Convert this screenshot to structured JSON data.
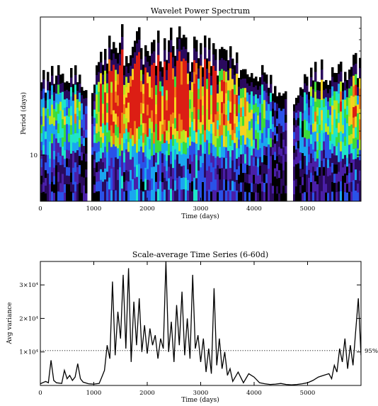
{
  "chart_data": [
    {
      "type": "heatmap",
      "title": "Wavelet Power Spectrum",
      "xlabel": "Time (days)",
      "ylabel": "Period (days)",
      "xlim": [
        0,
        6000
      ],
      "x_ticks": [
        "0",
        "1000",
        "2000",
        "3000",
        "4000",
        "5000"
      ],
      "x_tick_values": [
        0,
        1000,
        2000,
        3000,
        4000,
        5000
      ],
      "y_scale": "log",
      "y_ticks": [
        "10"
      ],
      "y_tick_values": [
        10
      ],
      "colormap": [
        "#000000",
        "#2a0a5e",
        "#4a1fa8",
        "#2a52e8",
        "#1aa6f0",
        "#1ee6c8",
        "#3cdc3c",
        "#b4e61e",
        "#f5d21e",
        "#f07814",
        "#dc1e14"
      ],
      "activity_profile": {
        "t": [
          0,
          150,
          300,
          450,
          600,
          750,
          900,
          1050,
          1200,
          1350,
          1500,
          1650,
          1800,
          1950,
          2100,
          2250,
          2400,
          2550,
          2700,
          2850,
          3000,
          3150,
          3300,
          3450,
          3600,
          3750,
          3900,
          4050,
          4200,
          4350,
          4500,
          4650,
          4800,
          4950,
          5100,
          5250,
          5400,
          5550,
          5700,
          5850,
          6000
        ],
        "level": [
          0.45,
          0.55,
          0.5,
          0.55,
          0.6,
          0.45,
          0.05,
          0.7,
          0.85,
          0.95,
          1.0,
          1.0,
          0.95,
          0.95,
          1.0,
          0.95,
          1.0,
          0.95,
          1.0,
          0.9,
          0.85,
          0.85,
          0.8,
          0.8,
          0.7,
          0.7,
          0.65,
          0.6,
          0.55,
          0.35,
          0.2,
          0.1,
          0.2,
          0.4,
          0.55,
          0.6,
          0.55,
          0.6,
          0.65,
          0.7,
          0.75
        ]
      }
    },
    {
      "type": "line",
      "title": "Scale-average Time Series (6-60d)",
      "xlabel": "Time (days)",
      "ylabel": "Avg variance",
      "xlim": [
        0,
        6000
      ],
      "ylim": [
        0,
        37000
      ],
      "x_ticks": [
        "0",
        "1000",
        "2000",
        "3000",
        "4000",
        "5000"
      ],
      "x_tick_values": [
        0,
        1000,
        2000,
        3000,
        4000,
        5000
      ],
      "y_ticks": [
        "1×10⁴",
        "2×10⁴",
        "3×10⁴"
      ],
      "y_tick_values": [
        10000,
        20000,
        30000
      ],
      "threshold": {
        "value": 10400,
        "label": "95%"
      },
      "series": [
        {
          "x": [
            0,
            100,
            150,
            200,
            250,
            300,
            400,
            450,
            500,
            550,
            600,
            650,
            700,
            750,
            800,
            900,
            1000,
            1100,
            1150,
            1200,
            1250,
            1300,
            1350,
            1400,
            1450,
            1500,
            1550,
            1600,
            1650,
            1700,
            1750,
            1800,
            1850,
            1900,
            1950,
            2000,
            2050,
            2100,
            2150,
            2200,
            2250,
            2300,
            2350,
            2400,
            2450,
            2500,
            2550,
            2600,
            2650,
            2700,
            2750,
            2800,
            2850,
            2900,
            2950,
            3000,
            3050,
            3100,
            3150,
            3200,
            3250,
            3300,
            3350,
            3400,
            3450,
            3500,
            3550,
            3600,
            3700,
            3800,
            3900,
            4000,
            4100,
            4200,
            4300,
            4400,
            4500,
            4600,
            4700,
            4800,
            4900,
            5000,
            5100,
            5200,
            5300,
            5400,
            5450,
            5500,
            5550,
            5600,
            5650,
            5700,
            5750,
            5800,
            5850,
            5900,
            5950,
            6000
          ],
          "y": [
            500,
            1200,
            800,
            7500,
            1500,
            800,
            600,
            4500,
            2000,
            3000,
            1500,
            2500,
            6500,
            2000,
            1000,
            500,
            400,
            600,
            2500,
            4500,
            12000,
            8000,
            31000,
            9000,
            22000,
            14000,
            33000,
            11000,
            35000,
            7000,
            25000,
            12000,
            26000,
            10000,
            18000,
            9500,
            17000,
            12000,
            15000,
            8000,
            14000,
            11000,
            37000,
            10000,
            19000,
            7000,
            24000,
            12000,
            28000,
            9000,
            20000,
            8000,
            33000,
            11000,
            15000,
            7000,
            14000,
            4000,
            11000,
            3500,
            29000,
            6000,
            14000,
            5000,
            10000,
            3000,
            5000,
            1200,
            4000,
            800,
            3500,
            2500,
            800,
            500,
            300,
            400,
            600,
            300,
            200,
            300,
            500,
            800,
            1500,
            2500,
            3000,
            3500,
            2000,
            6000,
            4000,
            11000,
            7000,
            14000,
            5000,
            12000,
            6000,
            16000,
            26000,
            9000
          ]
        }
      ]
    }
  ]
}
